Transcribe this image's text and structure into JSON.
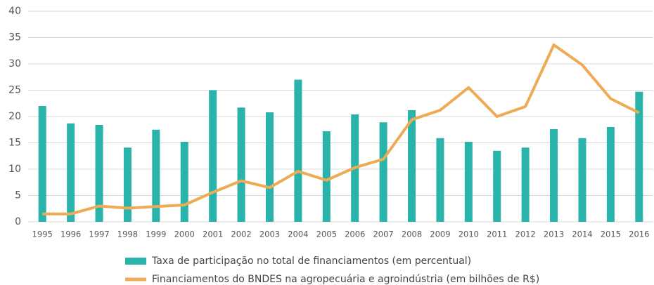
{
  "chart_data": {
    "type": "bar",
    "categories": [
      "1995",
      "1996",
      "1997",
      "1998",
      "1999",
      "2000",
      "2001",
      "2002",
      "2003",
      "2004",
      "2005",
      "2006",
      "2007",
      "2008",
      "2009",
      "2010",
      "2011",
      "2012",
      "2013",
      "2014",
      "2015",
      "2016"
    ],
    "series": [
      {
        "name": "Taxa de participação no total de financiamentos (em percentual)",
        "type": "bar",
        "color": "#2ab3aa",
        "values": [
          22,
          18.7,
          18.4,
          14.1,
          17.5,
          15.2,
          25,
          21.7,
          20.8,
          27,
          17.2,
          20.4,
          18.9,
          21.2,
          15.9,
          15.2,
          13.5,
          14.1,
          17.6,
          15.9,
          18,
          24.7
        ]
      },
      {
        "name": "Financiamentos do BNDES na agropecuária e agroindústria (em bilhões de R$)",
        "type": "line",
        "color": "#eeab55",
        "values": [
          1.5,
          1.5,
          3.0,
          2.6,
          2.9,
          3.2,
          5.6,
          7.8,
          6.5,
          9.6,
          7.9,
          10.3,
          11.9,
          19.4,
          21.2,
          25.5,
          20.0,
          21.9,
          33.6,
          29.8,
          23.4,
          20.7
        ]
      }
    ],
    "ylim": [
      0,
      40
    ],
    "yticks": [
      0,
      5,
      10,
      15,
      20,
      25,
      30,
      35,
      40
    ],
    "grid": true,
    "legend": "bottom"
  }
}
